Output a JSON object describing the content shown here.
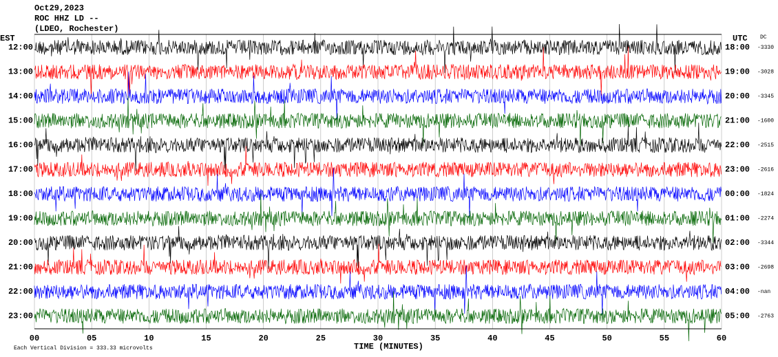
{
  "chart_data": {
    "type": "helicorder",
    "title_lines": [
      "Oct29,2023",
      "ROC HHZ LD --",
      "(LDEO, Rochester)"
    ],
    "left_axis_label": "EST",
    "right_axis_label": "UTC",
    "dc_label": "DC",
    "est_labels": [
      "12:00",
      "13:00",
      "14:00",
      "15:00",
      "16:00",
      "17:00",
      "18:00",
      "19:00",
      "20:00",
      "21:00",
      "22:00",
      "23:00"
    ],
    "utc_labels": [
      "18:00",
      "19:00",
      "20:00",
      "21:00",
      "22:00",
      "23:00",
      "00:00",
      "01:00",
      "02:00",
      "03:00",
      "04:00",
      "05:00"
    ],
    "dc_values": [
      "-3330",
      "-3028",
      "-3345",
      "-1600",
      "-2515",
      "-2616",
      "-1824",
      "-2274",
      "-3344",
      "-2698",
      "-nan",
      "-2763"
    ],
    "trace_colors": [
      "#000000",
      "#ff0000",
      "#0000ff",
      "#006400"
    ],
    "xlim": [
      0,
      60
    ],
    "xticks": [
      {
        "value": 0,
        "label": "00"
      },
      {
        "value": 5,
        "label": "05"
      },
      10,
      15,
      20,
      25,
      30,
      35,
      40,
      45,
      50,
      55,
      60
    ],
    "xlabel": "TIME (MINUTES)",
    "footer": "Each Vertical Division =  333.33 microvolts",
    "grid": true
  }
}
